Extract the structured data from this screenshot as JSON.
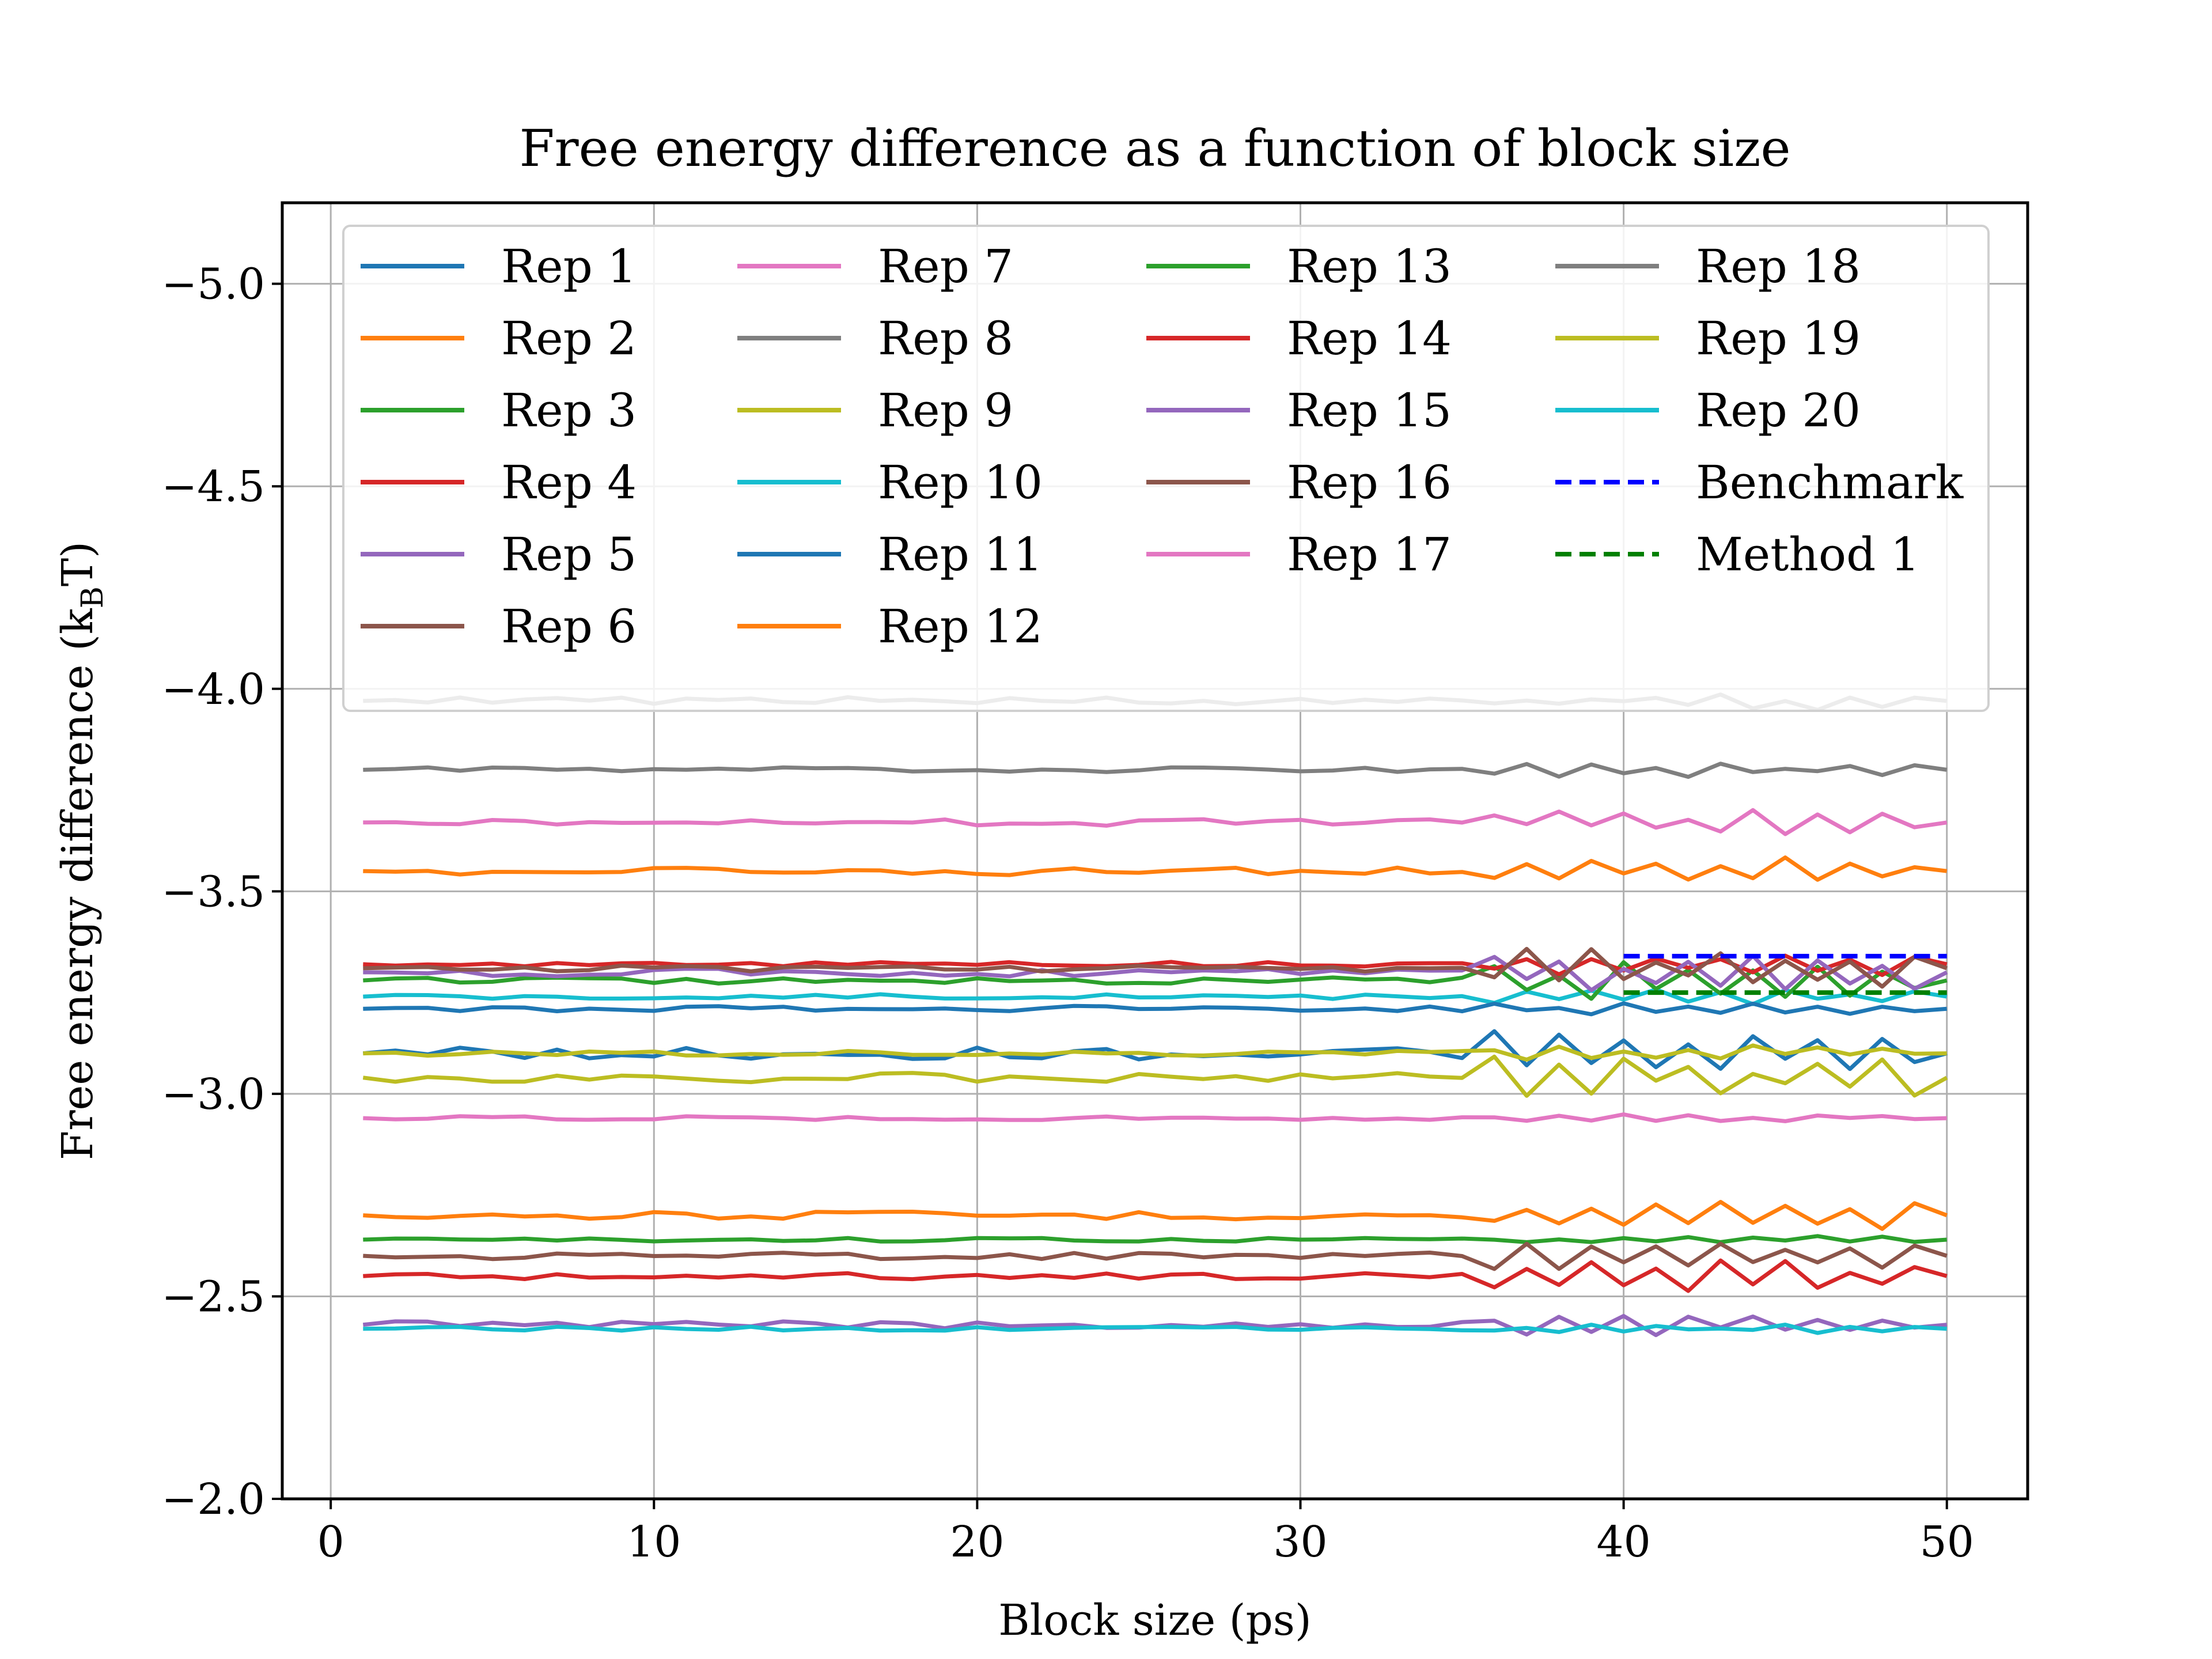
{
  "chart_data": {
    "type": "line",
    "title": "Free energy difference as a function of block size",
    "xlabel": "Block size (ps)",
    "ylabel": "Free energy difference (k",
    "ylabel_sub": "B",
    "ylabel_tail": "T)",
    "xlim": [
      -1.5,
      52.5
    ],
    "ylim": [
      -2.0,
      -5.2
    ],
    "y_inverted": true,
    "grid": true,
    "legend_placement": "top",
    "legend_columns": 4,
    "x_ticks": [
      0,
      10,
      20,
      30,
      40,
      50
    ],
    "x_tick_labels": [
      "0",
      "10",
      "20",
      "30",
      "40",
      "50"
    ],
    "y_ticks": [
      -5.0,
      -4.5,
      -4.0,
      -3.5,
      -3.0,
      -2.5,
      -2.0
    ],
    "y_tick_labels": [
      "−5.0",
      "−4.5",
      "−4.0",
      "−3.5",
      "−3.0",
      "−2.5",
      "−2.0"
    ],
    "x_start": 1,
    "x_end": 50,
    "series": [
      {
        "name": "Rep 1",
        "color": "#1f77b4",
        "base": -3.1,
        "noise": 0.015,
        "late_amp": 0.035,
        "phase": 1
      },
      {
        "name": "Rep 2",
        "color": "#ff7f0e",
        "base": -2.7,
        "noise": 0.01,
        "late_amp": 0.02,
        "phase": 2
      },
      {
        "name": "Rep 3",
        "color": "#2ca02c",
        "base": -2.64,
        "noise": 0.005,
        "late_amp": 0.006,
        "phase": 3
      },
      {
        "name": "Rep 4",
        "color": "#d62728",
        "base": -2.55,
        "noise": 0.008,
        "late_amp": 0.025,
        "phase": 4
      },
      {
        "name": "Rep 5",
        "color": "#9467bd",
        "base": -2.43,
        "noise": 0.01,
        "late_amp": 0.015,
        "phase": 5
      },
      {
        "name": "Rep 6",
        "color": "#8c564b",
        "base": -2.6,
        "noise": 0.008,
        "late_amp": 0.018,
        "phase": 6
      },
      {
        "name": "Rep 7",
        "color": "#e377c2",
        "base": -2.94,
        "noise": 0.005,
        "late_amp": 0.006,
        "phase": 7
      },
      {
        "name": "Rep 8",
        "color": "#7f7f7f",
        "base": -3.8,
        "noise": 0.006,
        "late_amp": 0.01,
        "phase": 8
      },
      {
        "name": "Rep 9",
        "color": "#bcbd22",
        "base": -3.04,
        "noise": 0.012,
        "late_amp": 0.03,
        "phase": 9
      },
      {
        "name": "Rep 10",
        "color": "#17becf",
        "base": -3.24,
        "noise": 0.006,
        "late_amp": 0.012,
        "phase": 10
      },
      {
        "name": "Rep 11",
        "color": "#1f77b4",
        "base": -3.21,
        "noise": 0.007,
        "late_amp": 0.008,
        "phase": 11
      },
      {
        "name": "Rep 12",
        "color": "#ff7f0e",
        "base": -3.55,
        "noise": 0.01,
        "late_amp": 0.018,
        "phase": 12
      },
      {
        "name": "Rep 13",
        "color": "#2ca02c",
        "base": -3.28,
        "noise": 0.008,
        "late_amp": 0.03,
        "phase": 13
      },
      {
        "name": "Rep 14",
        "color": "#d62728",
        "base": -3.32,
        "noise": 0.006,
        "late_amp": 0.015,
        "phase": 14
      },
      {
        "name": "Rep 15",
        "color": "#9467bd",
        "base": -3.3,
        "noise": 0.01,
        "late_amp": 0.025,
        "phase": 15
      },
      {
        "name": "Rep 16",
        "color": "#8c564b",
        "base": -3.31,
        "noise": 0.008,
        "late_amp": 0.03,
        "phase": 16
      },
      {
        "name": "Rep 17",
        "color": "#e377c2",
        "base": -3.67,
        "noise": 0.008,
        "late_amp": 0.018,
        "phase": 17
      },
      {
        "name": "Rep 18",
        "color": "#7f7f7f",
        "base": -3.97,
        "noise": 0.01,
        "late_amp": 0.01,
        "phase": 18
      },
      {
        "name": "Rep 19",
        "color": "#bcbd22",
        "base": -3.1,
        "noise": 0.006,
        "late_amp": 0.012,
        "phase": 19
      },
      {
        "name": "Rep 20",
        "color": "#17becf",
        "base": -2.42,
        "noise": 0.005,
        "late_amp": 0.006,
        "phase": 20
      }
    ],
    "reference_lines": [
      {
        "name": "Benchmark",
        "color": "#0000ff",
        "y": -3.34,
        "x_start": 40,
        "x_end": 50,
        "style": "dashed"
      },
      {
        "name": "Method 1",
        "color": "#008000",
        "y": -3.25,
        "x_start": 40,
        "x_end": 50,
        "style": "dashed"
      }
    ]
  }
}
